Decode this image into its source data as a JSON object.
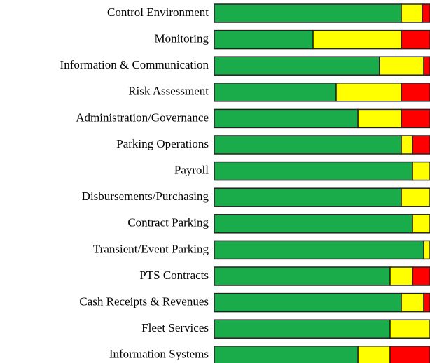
{
  "chart_data": {
    "type": "stacked-barh",
    "categories": [
      "Control Environment",
      "Monitoring",
      "Information & Communication",
      "Risk Assessment",
      "Administration/Governance",
      "Parking Operations",
      "Payroll",
      "Disbursements/Purchasing",
      "Contract Parking",
      "Transient/Event Parking",
      "PTS Contracts",
      "Cash Receipts & Revenues",
      "Fleet Services",
      "Information Systems"
    ],
    "series": [
      {
        "color": "#1aab4b",
        "values": [
          86.7,
          45.8,
          76.6,
          56.5,
          66.6,
          86.7,
          91.9,
          86.7,
          91.9,
          97.1,
          81.5,
          86.7,
          81.5,
          66.6
        ]
      },
      {
        "color": "#ffff00",
        "values": [
          9.7,
          40.9,
          20.5,
          30.2,
          20.1,
          5.2,
          8.1,
          13.3,
          8.1,
          2.9,
          10.4,
          10.4,
          18.5,
          14.9
        ]
      },
      {
        "color": "#ff0000",
        "values": [
          3.6,
          13.3,
          2.9,
          13.3,
          13.3,
          8.1,
          0,
          0,
          0,
          0,
          8.1,
          2.9,
          0,
          18.5
        ]
      }
    ],
    "xlim": [
      0,
      100
    ]
  }
}
